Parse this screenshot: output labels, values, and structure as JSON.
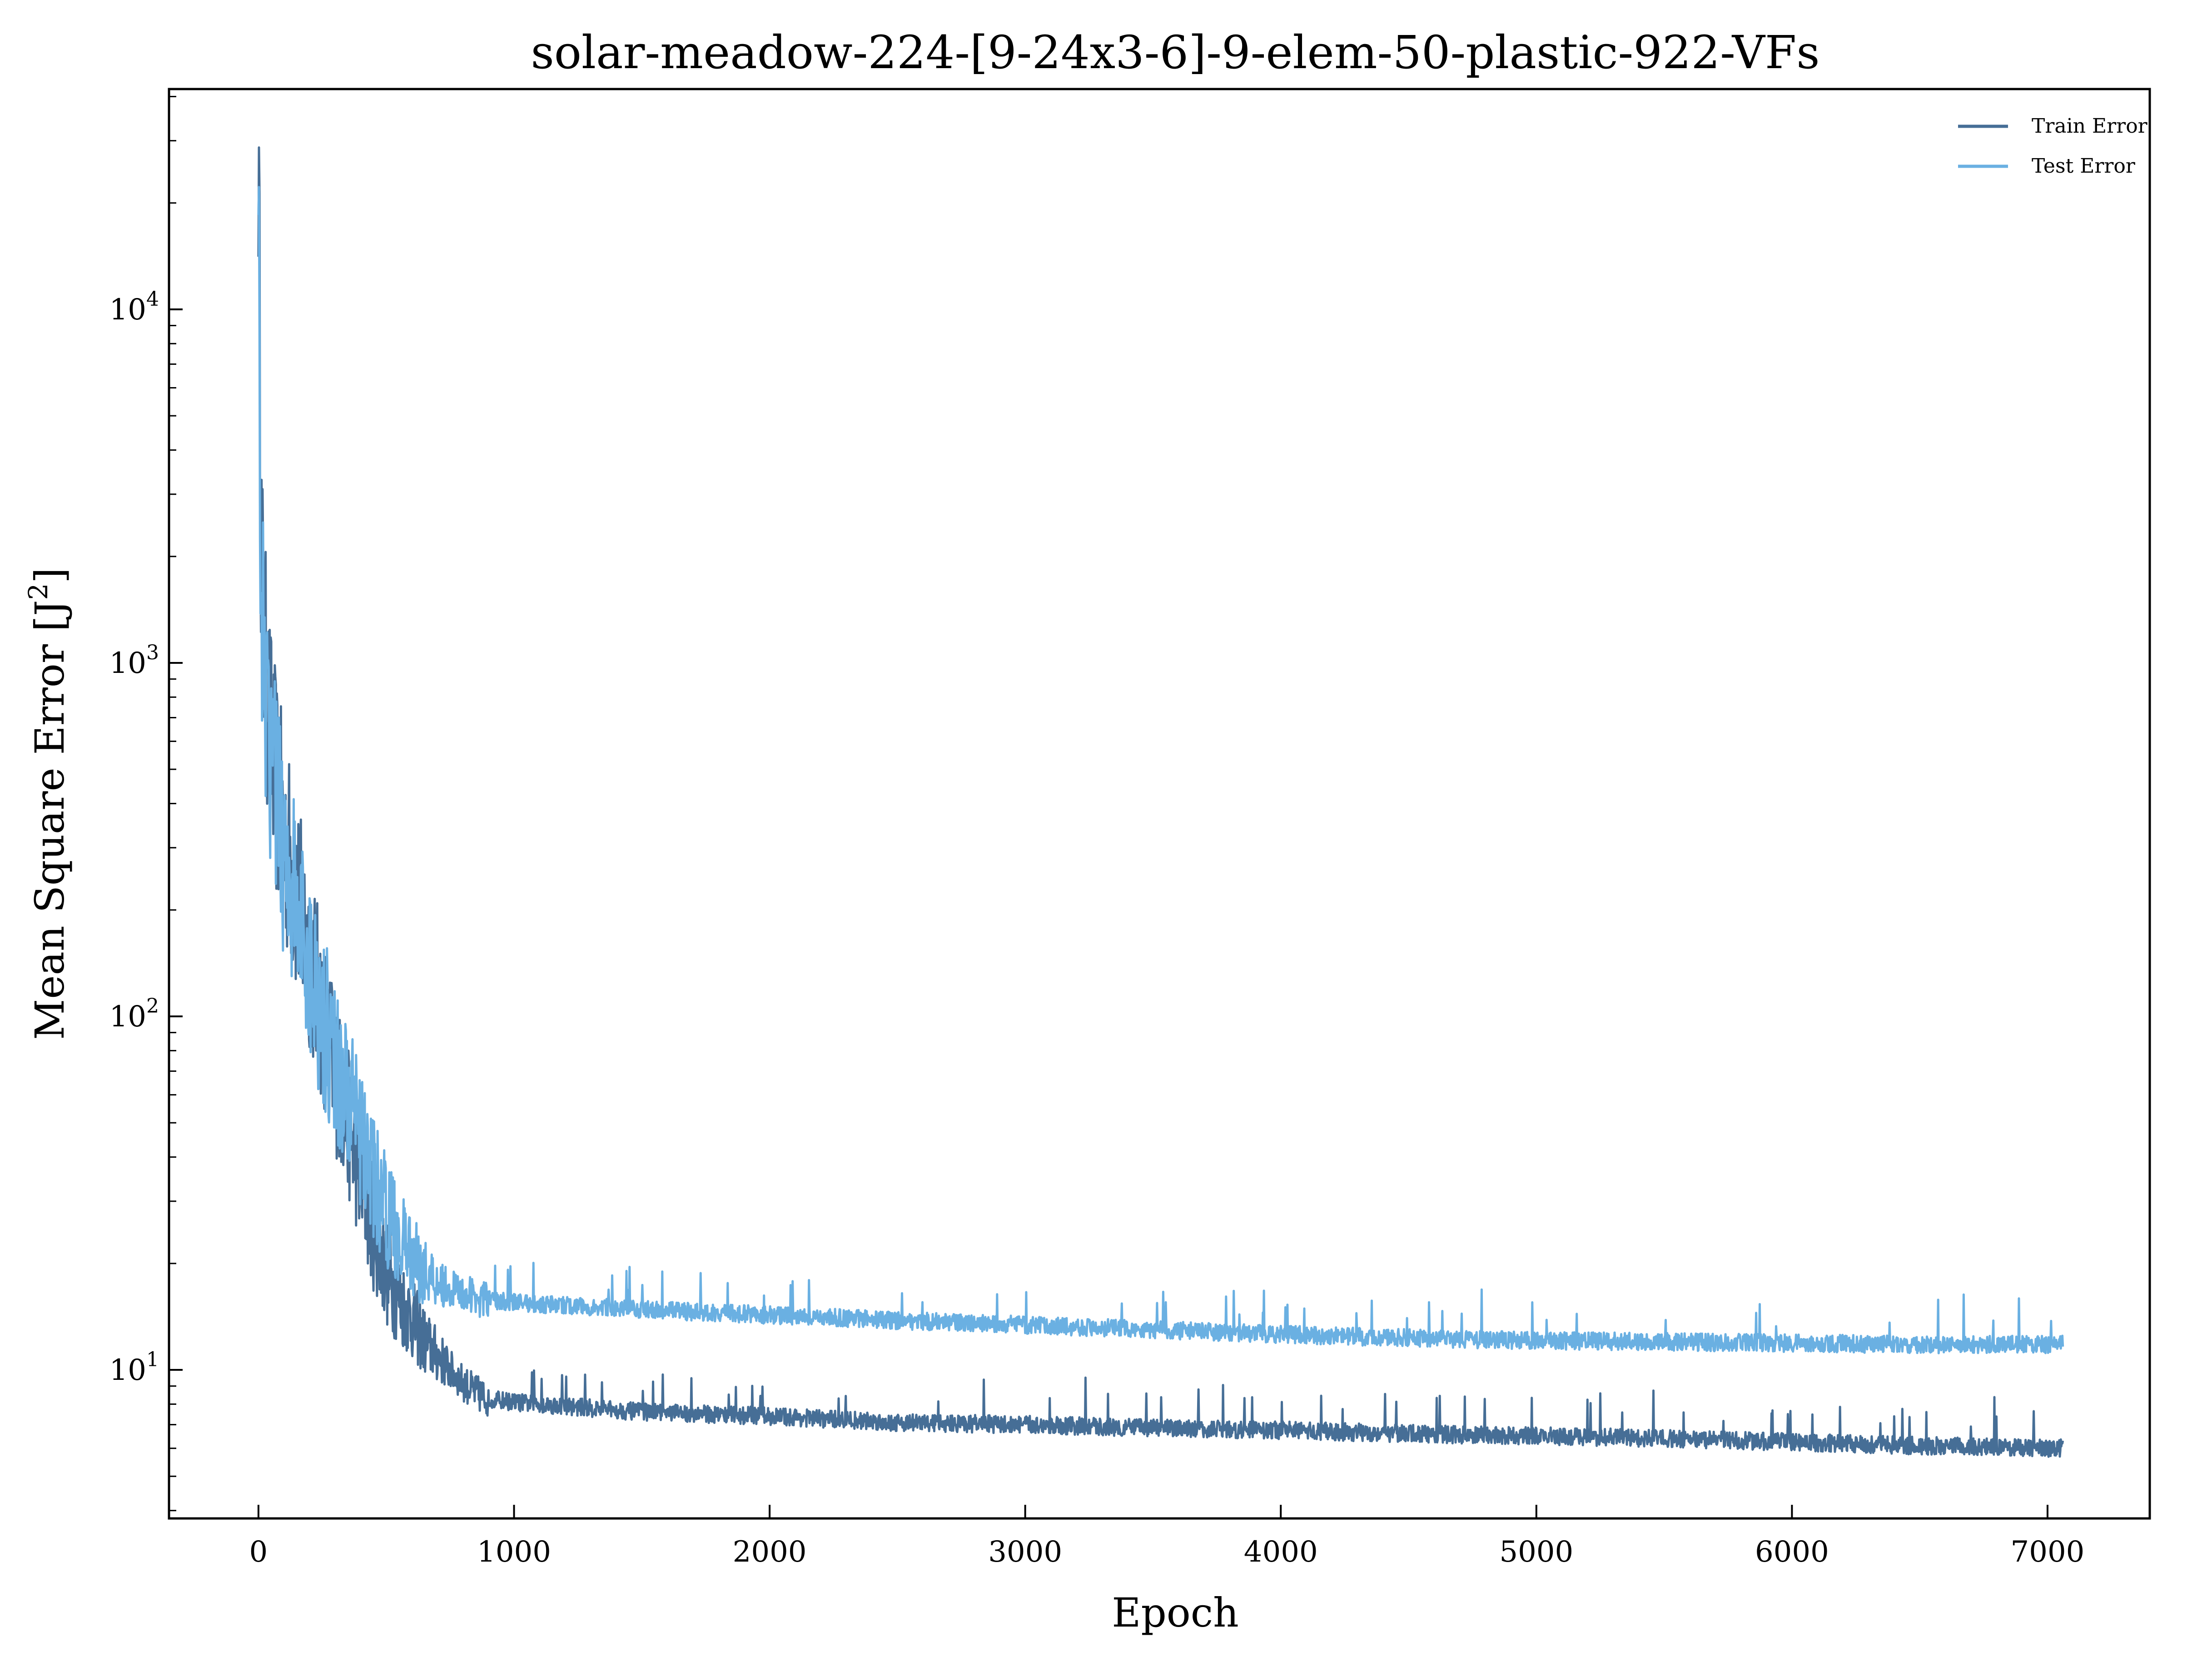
{
  "chart_data": {
    "type": "line",
    "title": "solar-meadow-224-[9-24x3-6]-9-elem-50-plastic-922-VFs",
    "xlabel": "Epoch",
    "ylabel": "Mean Square Error [J",
    "ylabel_sup": "2",
    "ylabel_end": "]",
    "xlim": [
      -350,
      7400
    ],
    "ylim": [
      3.8,
      42000
    ],
    "yscale": "log",
    "grid": false,
    "legend_position": "top-right",
    "x_ticks": [
      0,
      1000,
      2000,
      3000,
      4000,
      5000,
      6000,
      7000
    ],
    "x_tick_labels": [
      "0",
      "1000",
      "2000",
      "3000",
      "4000",
      "5000",
      "6000",
      "7000"
    ],
    "y_ticks": [
      10,
      100,
      1000,
      10000
    ],
    "y_tick_labels": [
      {
        "base": "10",
        "exp": "1"
      },
      {
        "base": "10",
        "exp": "2"
      },
      {
        "base": "10",
        "exp": "3"
      },
      {
        "base": "10",
        "exp": "4"
      }
    ],
    "series": [
      {
        "name": "Train Error",
        "color": "#466e96",
        "x": [
          0,
          10,
          20,
          40,
          60,
          80,
          100,
          130,
          160,
          200,
          250,
          300,
          350,
          400,
          450,
          500,
          550,
          600,
          650,
          700,
          750,
          800,
          850,
          900,
          1000,
          1200,
          1500,
          2000,
          2500,
          3000,
          3500,
          4000,
          4500,
          5000,
          5500,
          6000,
          6500,
          7060
        ],
        "y": [
          27000,
          2500,
          1200,
          700,
          500,
          400,
          320,
          260,
          200,
          150,
          100,
          70,
          50,
          35,
          25,
          19,
          16,
          14,
          12,
          11,
          10,
          9.2,
          8.6,
          8.3,
          8.1,
          7.9,
          7.6,
          7.4,
          7.1,
          7.0,
          6.85,
          6.75,
          6.6,
          6.5,
          6.4,
          6.25,
          6.1,
          6.0
        ]
      },
      {
        "name": "Test Error",
        "color": "#6ab0e2",
        "x": [
          0,
          10,
          20,
          40,
          60,
          80,
          100,
          130,
          160,
          200,
          250,
          300,
          350,
          400,
          450,
          500,
          550,
          600,
          650,
          700,
          750,
          800,
          850,
          900,
          1000,
          1200,
          1500,
          2000,
          2500,
          3000,
          3500,
          4000,
          4500,
          5000,
          5500,
          6000,
          6500,
          7060
        ],
        "y": [
          15000,
          2000,
          1000,
          600,
          450,
          380,
          300,
          240,
          180,
          140,
          100,
          75,
          60,
          45,
          35,
          28,
          24,
          21,
          19,
          18,
          17,
          16.5,
          16,
          15.8,
          15.5,
          15.2,
          14.8,
          14.3,
          13.8,
          13.4,
          13.0,
          12.6,
          12.3,
          12.1,
          12.0,
          11.9,
          11.8,
          11.8
        ]
      }
    ]
  }
}
